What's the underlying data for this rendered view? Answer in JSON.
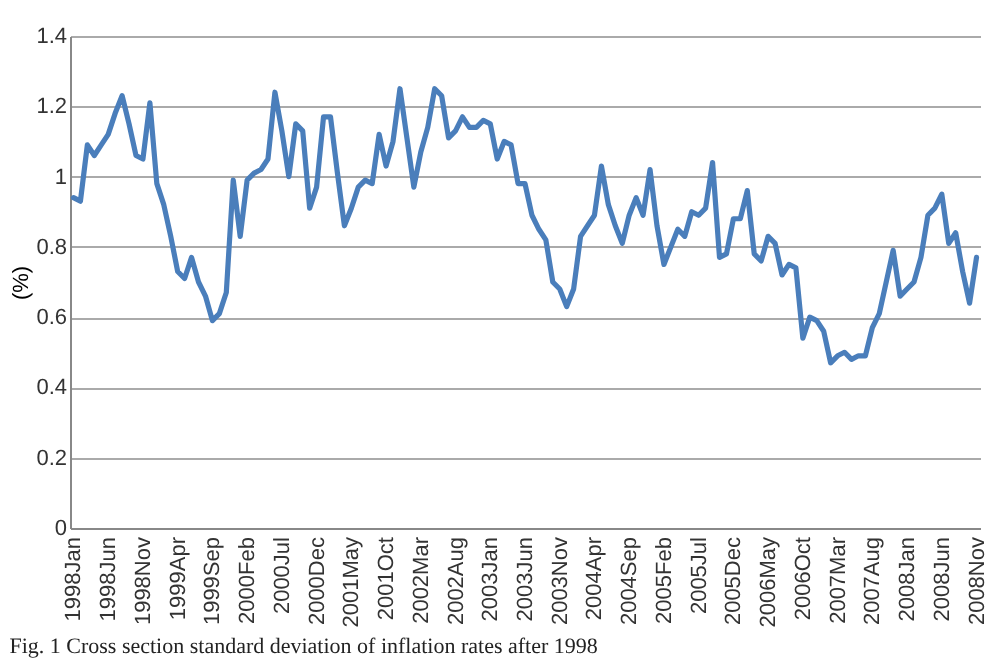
{
  "chart_data": {
    "type": "line",
    "ylabel": "(%)",
    "annotations": [
      "Fig. 1 Cross section standard deviation of inflation rates after 1998"
    ],
    "categories": [
      "1998Jan",
      null,
      null,
      null,
      null,
      "1998Jun",
      null,
      null,
      null,
      null,
      "1998Nov",
      null,
      null,
      null,
      null,
      "1999Apr",
      null,
      null,
      null,
      null,
      "1999Sep",
      null,
      null,
      null,
      null,
      "2000Feb",
      null,
      null,
      null,
      null,
      "2000Jul",
      null,
      null,
      null,
      null,
      "2000Dec",
      null,
      null,
      null,
      null,
      "2001May",
      null,
      null,
      null,
      null,
      "2001Oct",
      null,
      null,
      null,
      null,
      "2002Mar",
      null,
      null,
      null,
      null,
      "2002Aug",
      null,
      null,
      null,
      null,
      "2003Jan",
      null,
      null,
      null,
      null,
      "2003Jun",
      null,
      null,
      null,
      null,
      "2003Nov",
      null,
      null,
      null,
      null,
      "2004Apr",
      null,
      null,
      null,
      null,
      "2004Sep",
      null,
      null,
      null,
      null,
      "2005Feb",
      null,
      null,
      null,
      null,
      "2005Jul",
      null,
      null,
      null,
      null,
      "2005Dec",
      null,
      null,
      null,
      null,
      "2006May",
      null,
      null,
      null,
      null,
      "2006Oct",
      null,
      null,
      null,
      null,
      "2007Mar",
      null,
      null,
      null,
      null,
      "2007Aug",
      null,
      null,
      null,
      null,
      "2008Jan",
      null,
      null,
      null,
      null,
      "2008Jun",
      null,
      null,
      null,
      null,
      "2008Nov"
    ],
    "series": [
      {
        "color": "#4a7ebb",
        "values": [
          0.94,
          0.93,
          1.09,
          1.06,
          1.09,
          1.12,
          1.18,
          1.23,
          1.15,
          1.06,
          1.05,
          1.21,
          0.98,
          0.92,
          0.83,
          0.73,
          0.71,
          0.77,
          0.7,
          0.66,
          0.59,
          0.61,
          0.67,
          0.99,
          0.83,
          0.99,
          1.01,
          1.02,
          1.05,
          1.24,
          1.13,
          1.0,
          1.15,
          1.13,
          0.91,
          0.97,
          1.17,
          1.17,
          1.01,
          0.86,
          0.91,
          0.97,
          0.99,
          0.98,
          1.12,
          1.03,
          1.1,
          1.25,
          1.11,
          0.97,
          1.07,
          1.14,
          1.25,
          1.23,
          1.11,
          1.13,
          1.17,
          1.14,
          1.14,
          1.16,
          1.15,
          1.05,
          1.1,
          1.09,
          0.98,
          0.98,
          0.89,
          0.85,
          0.82,
          0.7,
          0.68,
          0.63,
          0.68,
          0.83,
          0.86,
          0.89,
          1.03,
          0.92,
          0.86,
          0.81,
          0.89,
          0.94,
          0.89,
          1.02,
          0.86,
          0.75,
          0.8,
          0.85,
          0.83,
          0.9,
          0.89,
          0.91,
          1.04,
          0.77,
          0.78,
          0.88,
          0.88,
          0.96,
          0.78,
          0.76,
          0.83,
          0.81,
          0.72,
          0.75,
          0.74,
          0.54,
          0.6,
          0.59,
          0.56,
          0.47,
          0.49,
          0.5,
          0.48,
          0.49,
          0.49,
          0.57,
          0.61,
          0.7,
          0.79,
          0.66,
          0.68,
          0.7,
          0.77,
          0.89,
          0.91,
          0.95,
          0.81,
          0.84,
          0.73,
          0.64,
          0.77
        ]
      }
    ],
    "ylim": [
      0,
      1.4
    ],
    "yticks": [
      0,
      0.2,
      0.4,
      0.6,
      0.8,
      1,
      1.2,
      1.4
    ],
    "grid": "y"
  }
}
